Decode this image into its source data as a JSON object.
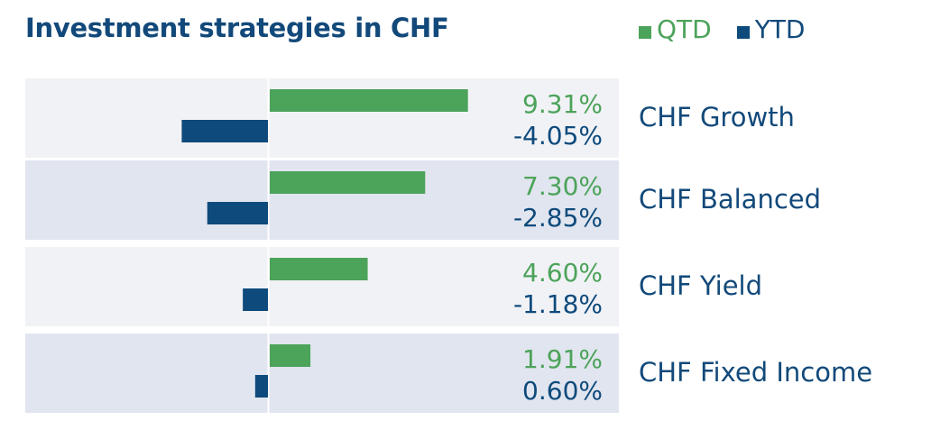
{
  "chart_data": {
    "type": "bar",
    "title": "Investment strategies in CHF",
    "categories": [
      "CHF Growth",
      "CHF Balanced",
      "CHF Yield",
      "CHF Fixed Income"
    ],
    "series": [
      {
        "name": "QTD",
        "values": [
          9.31,
          7.3,
          4.6,
          1.91
        ],
        "labels": [
          "9.31%",
          "7.30%",
          "4.60%",
          "1.91%"
        ]
      },
      {
        "name": "YTD",
        "values": [
          -4.05,
          -2.85,
          -1.18,
          0.6
        ],
        "labels": [
          "-4.05%",
          "-2.85%",
          "-1.18%",
          "0.60%"
        ]
      }
    ],
    "orientation": "horizontal",
    "legend_position": "top-right"
  },
  "colors": {
    "qtd": "#4ca35a",
    "ytd": "#0e4a7c",
    "title": "#12497a",
    "row_light": "#f1f2f6",
    "row_dark": "#e1e5ef"
  }
}
